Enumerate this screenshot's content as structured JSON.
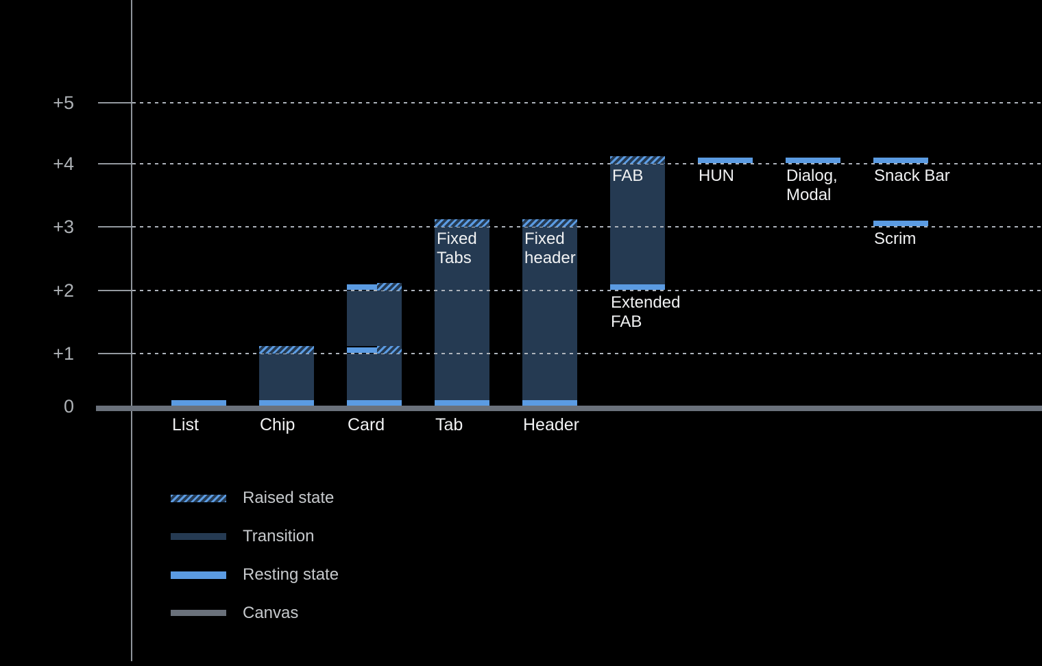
{
  "colors": {
    "background": "#000000",
    "transition_navy": "#253A52",
    "resting_blue": "#5B9BE2",
    "canvas_gray": "#6A717B",
    "axis_gray": "#949AA0",
    "grid_dot_gray": "#AEB4BC",
    "axis_label_gray": "#AEB2B6",
    "legend_text_gray": "#C6C9CC",
    "bar_label_white": "#F0F1F2"
  },
  "chart_data": {
    "type": "bar",
    "title": "",
    "xlabel": "",
    "ylabel": "",
    "y_axis": {
      "ticks": [
        {
          "label": "+5",
          "value": 5
        },
        {
          "label": "+4",
          "value": 4
        },
        {
          "label": "+3",
          "value": 3
        },
        {
          "label": "+2",
          "value": 2
        },
        {
          "label": "+1",
          "value": 1
        },
        {
          "label": "0",
          "value": 0
        }
      ],
      "ylim": [
        0,
        5.9
      ],
      "gridlines": "dotted"
    },
    "legend": [
      {
        "label": "Raised state",
        "swatch": "hatched"
      },
      {
        "label": "Transition",
        "swatch": "navy"
      },
      {
        "label": "Resting state",
        "swatch": "blue"
      },
      {
        "label": "Canvas",
        "swatch": "gray"
      }
    ],
    "legend_position": "bottom-left",
    "components": [
      {
        "name": "List",
        "col": 0,
        "axis_label_lines": [
          "List"
        ],
        "segments": [
          {
            "type": "resting",
            "level": 0
          }
        ]
      },
      {
        "name": "Chip",
        "col": 1,
        "axis_label_lines": [
          "Chip"
        ],
        "segments": [
          {
            "type": "resting",
            "level": 0
          },
          {
            "type": "transition",
            "from": 0,
            "to": 1
          },
          {
            "type": "raised",
            "level": 1
          }
        ]
      },
      {
        "name": "Card",
        "col": 2,
        "axis_label_lines": [
          "Card"
        ],
        "segments": [
          {
            "type": "resting",
            "level": 0
          },
          {
            "type": "transition",
            "from": 0,
            "to": 1
          },
          {
            "type": "resting_raised",
            "level": 1
          },
          {
            "type": "transition",
            "from": 1,
            "to": 2
          },
          {
            "type": "resting_raised",
            "level": 2
          }
        ]
      },
      {
        "name": "Tab",
        "col": 3,
        "axis_label_lines": [
          "Tab"
        ],
        "bar_label_lines": [
          "Fixed",
          "Tabs"
        ],
        "segments": [
          {
            "type": "resting",
            "level": 0
          },
          {
            "type": "transition",
            "from": 0,
            "to": 3
          },
          {
            "type": "raised",
            "level": 3
          }
        ]
      },
      {
        "name": "Header",
        "col": 4,
        "axis_label_lines": [
          "Header"
        ],
        "bar_label_lines": [
          "Fixed",
          "header"
        ],
        "segments": [
          {
            "type": "resting",
            "level": 0
          },
          {
            "type": "transition",
            "from": 0,
            "to": 3
          },
          {
            "type": "raised",
            "level": 3
          }
        ]
      },
      {
        "name": "FAB",
        "col": 5,
        "bar_label_lines": [
          "FAB"
        ],
        "below_label_lines": [
          "Extended",
          "FAB"
        ],
        "segments": [
          {
            "type": "resting",
            "level": 2
          },
          {
            "type": "transition",
            "from": 2,
            "to": 4
          },
          {
            "type": "raised",
            "level": 4
          }
        ]
      },
      {
        "name": "HUN",
        "col": 6,
        "below_label_lines": [
          "HUN"
        ],
        "segments": [
          {
            "type": "resting",
            "level": 4
          }
        ]
      },
      {
        "name": "Dialog, Modal",
        "col": 7,
        "below_label_lines": [
          "Dialog,",
          "Modal"
        ],
        "segments": [
          {
            "type": "resting",
            "level": 4
          }
        ]
      },
      {
        "name": "Snack Bar",
        "col": 8,
        "below_label_lines": [
          "Snack Bar"
        ],
        "segments": [
          {
            "type": "resting",
            "level": 4
          }
        ]
      },
      {
        "name": "Scrim",
        "col": 8,
        "below_label_lines": [
          "Scrim"
        ],
        "segments": [
          {
            "type": "resting",
            "level": 3
          }
        ]
      }
    ]
  }
}
